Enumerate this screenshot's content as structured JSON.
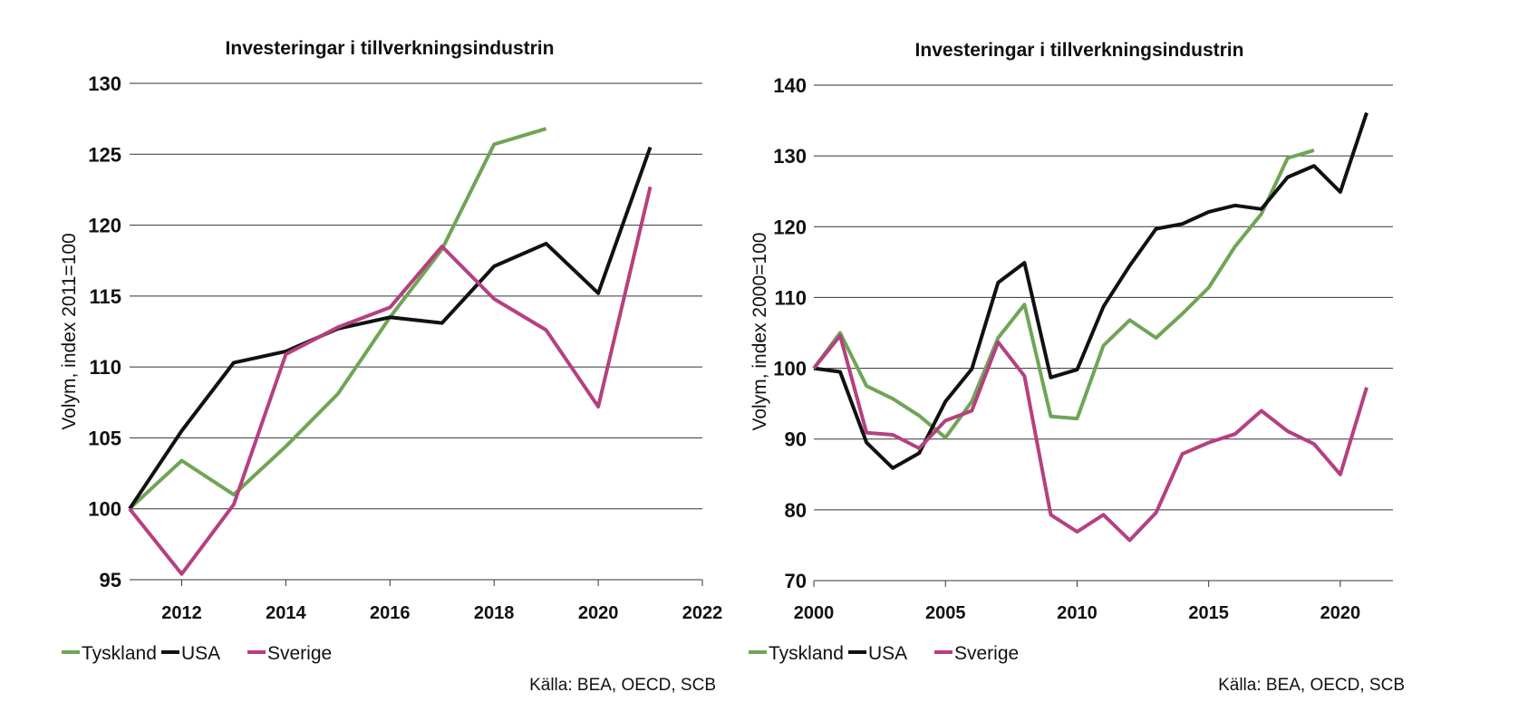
{
  "chart_data": [
    {
      "type": "line",
      "title": "Investeringar i tillverkningsindustrin",
      "ylabel": "Volym, index 2011=100",
      "xlabel": "",
      "xlim": [
        2011,
        2022
      ],
      "ylim": [
        95,
        130
      ],
      "yticks": [
        95,
        100,
        105,
        110,
        115,
        120,
        125,
        130
      ],
      "xticks": [
        2012,
        2014,
        2016,
        2018,
        2020,
        2022
      ],
      "grid": true,
      "legend_position": "bottom-left",
      "source": "Källa: BEA, OECD, SCB",
      "x": [
        2011,
        2012,
        2013,
        2014,
        2015,
        2016,
        2017,
        2018,
        2019,
        2020,
        2021
      ],
      "series": [
        {
          "name": "Tyskland",
          "color": "#6fa556",
          "values": [
            100,
            103.4,
            101.0,
            104.4,
            108.1,
            113.5,
            118.3,
            125.7,
            126.8,
            null,
            null
          ]
        },
        {
          "name": "USA",
          "color": "#111111",
          "values": [
            100,
            105.5,
            110.3,
            111.1,
            112.7,
            113.5,
            113.1,
            117.1,
            118.7,
            115.2,
            125.5
          ]
        },
        {
          "name": "Sverige",
          "color": "#b5407f",
          "values": [
            100,
            95.4,
            100.3,
            110.9,
            112.8,
            114.2,
            118.5,
            114.8,
            112.6,
            107.2,
            122.7
          ]
        }
      ]
    },
    {
      "type": "line",
      "title": "Investeringar i tillverkningsindustrin",
      "ylabel": "Volym, index 2000=100",
      "xlabel": "",
      "xlim": [
        2000,
        2022
      ],
      "ylim": [
        70,
        140
      ],
      "yticks": [
        70,
        80,
        90,
        100,
        110,
        120,
        130,
        140
      ],
      "xticks": [
        2000,
        2005,
        2010,
        2015,
        2020
      ],
      "grid": true,
      "legend_position": "bottom-left",
      "source": "Källa: BEA, OECD, SCB",
      "x": [
        2000,
        2001,
        2002,
        2003,
        2004,
        2005,
        2006,
        2007,
        2008,
        2009,
        2010,
        2011,
        2012,
        2013,
        2014,
        2015,
        2016,
        2017,
        2018,
        2019,
        2020,
        2021
      ],
      "series": [
        {
          "name": "Tyskland",
          "color": "#6fa556",
          "values": [
            100,
            105.0,
            97.5,
            95.7,
            93.3,
            90.2,
            95.3,
            104.3,
            109.0,
            93.2,
            92.9,
            103.2,
            106.8,
            104.3,
            107.7,
            111.4,
            117.2,
            121.8,
            129.7,
            130.8,
            null,
            null
          ]
        },
        {
          "name": "USA",
          "color": "#111111",
          "values": [
            100,
            99.5,
            89.5,
            85.9,
            88.0,
            95.3,
            99.9,
            112.1,
            114.9,
            98.7,
            99.8,
            108.7,
            114.5,
            119.7,
            120.4,
            122.1,
            123.0,
            122.5,
            127.0,
            128.6,
            124.9,
            136.1
          ]
        },
        {
          "name": "Sverige",
          "color": "#b5407f",
          "values": [
            100,
            104.6,
            90.9,
            90.6,
            88.7,
            92.6,
            94.0,
            103.7,
            98.9,
            79.3,
            76.9,
            79.3,
            75.7,
            79.6,
            87.9,
            89.5,
            90.7,
            94.0,
            91.1,
            89.3,
            85.0,
            97.3
          ]
        }
      ]
    }
  ]
}
